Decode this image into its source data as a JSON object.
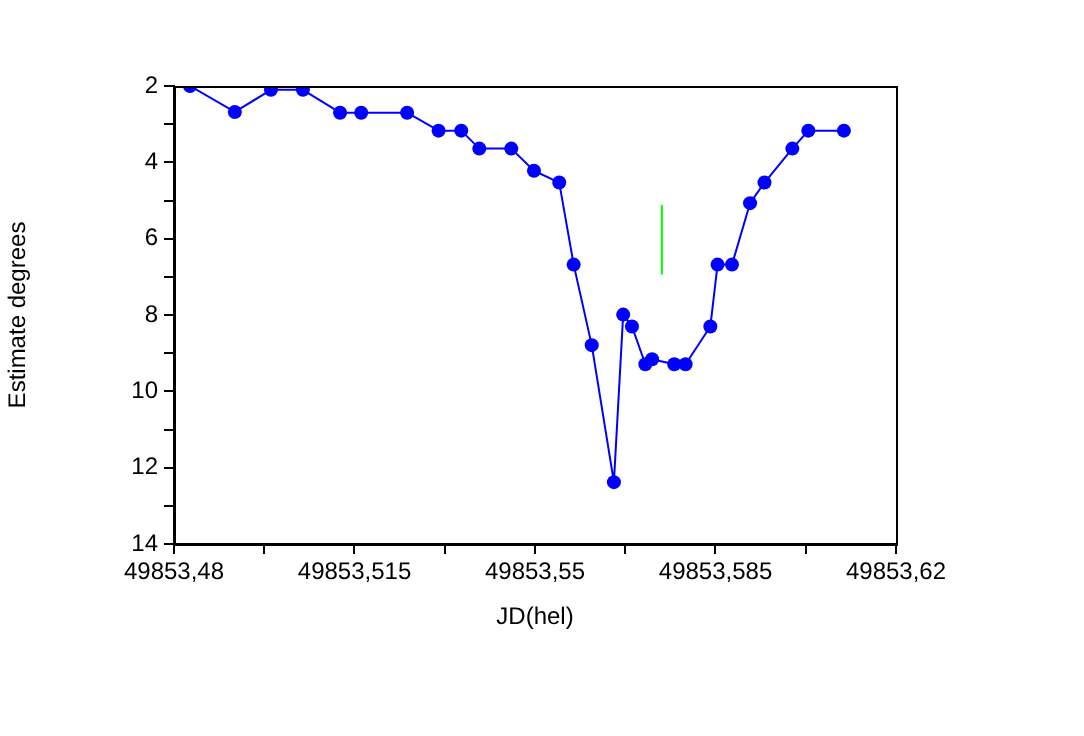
{
  "chart_data": {
    "type": "line",
    "xlabel": "JD(hel)",
    "ylabel": "Estimate degrees",
    "xlim": [
      49853.48,
      49853.62
    ],
    "xticks": [
      {
        "value": 49853.48,
        "label": "49853,48"
      },
      {
        "value": 49853.4975,
        "label": null
      },
      {
        "value": 49853.515,
        "label": "49853,515"
      },
      {
        "value": 49853.5325,
        "label": null
      },
      {
        "value": 49853.55,
        "label": "49853,55"
      },
      {
        "value": 49853.5675,
        "label": null
      },
      {
        "value": 49853.585,
        "label": "49853,585"
      },
      {
        "value": 49853.6025,
        "label": null
      },
      {
        "value": 49853.62,
        "label": "49853,62"
      }
    ],
    "ylim": [
      14,
      2
    ],
    "yticks": [
      2,
      {
        "value": 3,
        "label": null
      },
      4,
      {
        "value": 5,
        "label": null
      },
      6,
      {
        "value": 7,
        "label": null
      },
      8,
      {
        "value": 9,
        "label": null
      },
      10,
      {
        "value": 11,
        "label": null
      },
      12,
      {
        "value": 13,
        "label": null
      },
      14
    ],
    "grid": false,
    "legend": false,
    "series": [
      {
        "color": "#0000ff",
        "marker": "circle",
        "x": [
          49853.4831,
          49853.4918,
          49853.4988,
          49853.505,
          49853.5122,
          49853.5163,
          49853.5252,
          49853.5313,
          49853.5357,
          49853.5392,
          49853.5454,
          49853.5498,
          49853.5547,
          49853.5575,
          49853.561,
          49853.5653,
          49853.5671,
          49853.5688,
          49853.5714,
          49853.5727,
          49853.577,
          49853.5792,
          49853.584,
          49853.5854,
          49853.5882,
          49853.5917,
          49853.5945,
          49853.5999,
          49853.603,
          49853.6099
        ],
        "values": [
          2.0,
          2.68,
          2.1,
          2.1,
          2.7,
          2.7,
          2.7,
          3.17,
          3.17,
          3.64,
          3.64,
          4.22,
          4.53,
          6.68,
          8.79,
          12.38,
          7.99,
          8.3,
          9.29,
          9.16,
          9.29,
          9.29,
          8.3,
          6.68,
          6.68,
          5.07,
          4.53,
          3.64,
          3.17,
          3.17
        ]
      },
      {
        "color": "#00ff00",
        "marker": "none",
        "x": [
          49853.5746,
          49853.5746
        ],
        "values": [
          5.14,
          6.92
        ]
      }
    ]
  }
}
